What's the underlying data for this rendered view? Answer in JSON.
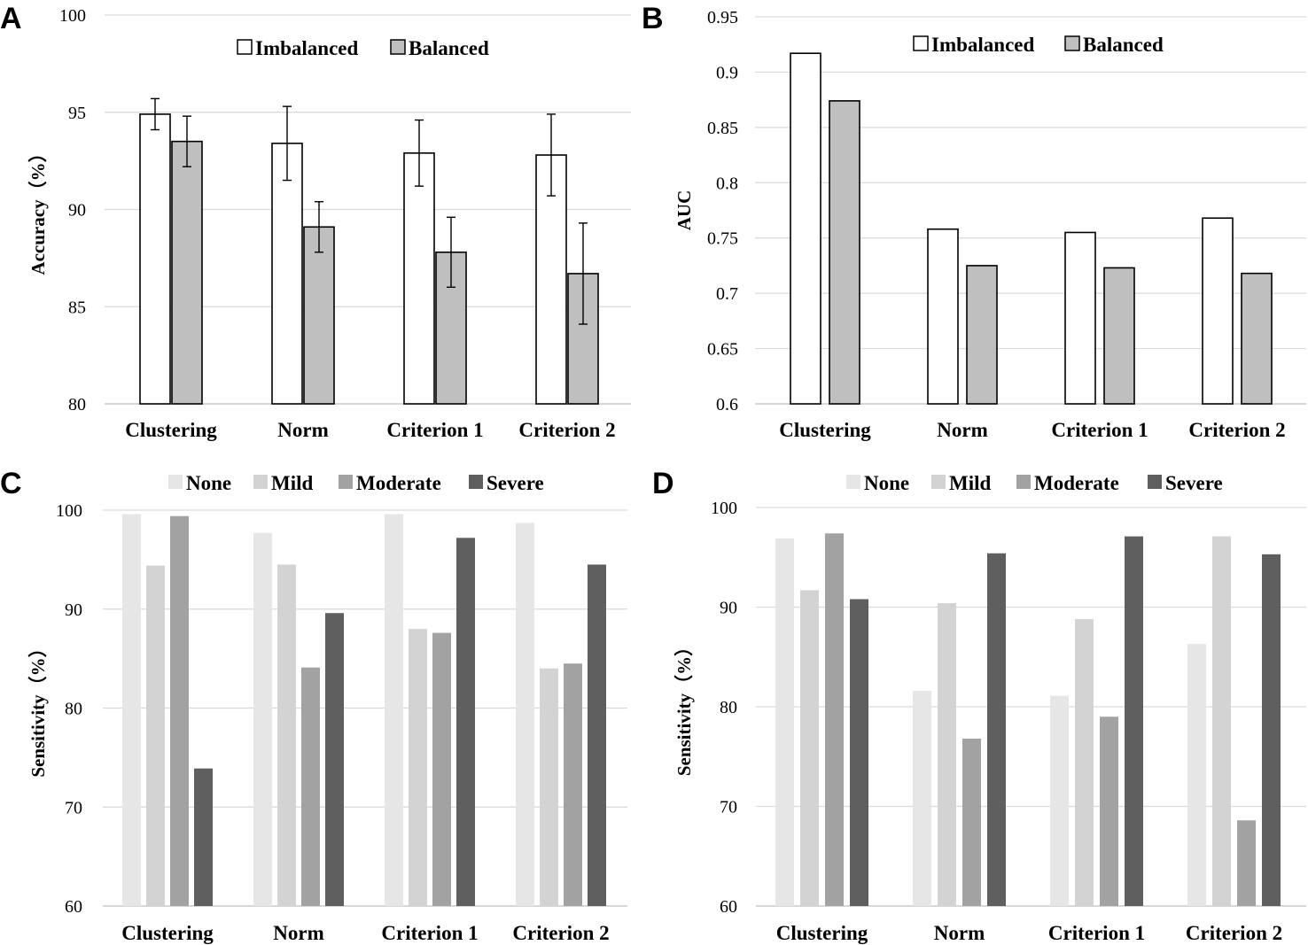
{
  "chart_data": [
    {
      "panel": "A",
      "type": "bar",
      "ylabel": "Accuracy（%）",
      "categories": [
        "Clustering",
        "Norm",
        "Criterion 1",
        "Criterion 2"
      ],
      "ylim": [
        80,
        100
      ],
      "yticks": [
        "80",
        "85",
        "90",
        "95",
        "100"
      ],
      "grid": true,
      "legend_position": "top-center",
      "series": [
        {
          "name": "Imbalanced",
          "color": "#ffffff",
          "values": [
            94.9,
            93.4,
            92.9,
            92.8
          ],
          "error": [
            0.8,
            1.9,
            1.7,
            2.1
          ]
        },
        {
          "name": "Balanced",
          "color": "#bfbfbf",
          "values": [
            93.5,
            89.1,
            87.8,
            86.7
          ],
          "error": [
            1.3,
            1.3,
            1.8,
            2.6
          ]
        }
      ]
    },
    {
      "panel": "B",
      "type": "bar",
      "ylabel": "AUC",
      "categories": [
        "Clustering",
        "Norm",
        "Criterion 1",
        "Criterion 2"
      ],
      "ylim": [
        0.6,
        0.95
      ],
      "yticks": [
        "0.6",
        "0.65",
        "0.7",
        "0.75",
        "0.8",
        "0.85",
        "0.9",
        "0.95"
      ],
      "grid": true,
      "legend_position": "top-center",
      "series": [
        {
          "name": "Imbalanced",
          "color": "#ffffff",
          "values": [
            0.917,
            0.758,
            0.755,
            0.768
          ]
        },
        {
          "name": "Balanced",
          "color": "#bfbfbf",
          "values": [
            0.874,
            0.725,
            0.723,
            0.718
          ]
        }
      ]
    },
    {
      "panel": "C",
      "type": "bar",
      "ylabel": "Sensitivity（%）",
      "categories": [
        "Clustering",
        "Norm",
        "Criterion 1",
        "Criterion 2"
      ],
      "ylim": [
        60,
        100
      ],
      "yticks": [
        "60",
        "70",
        "80",
        "90",
        "100"
      ],
      "grid": true,
      "legend_position": "top-center",
      "series": [
        {
          "name": "None",
          "color": "#e6e6e6",
          "values": [
            99.6,
            97.7,
            99.6,
            98.7
          ]
        },
        {
          "name": "Mild",
          "color": "#d3d3d3",
          "values": [
            94.4,
            94.5,
            88.0,
            84.0
          ]
        },
        {
          "name": "Moderate",
          "color": "#a2a2a2",
          "values": [
            99.4,
            84.1,
            87.6,
            84.5
          ]
        },
        {
          "name": "Severe",
          "color": "#5f5f5f",
          "values": [
            73.9,
            89.6,
            97.2,
            94.5
          ]
        }
      ]
    },
    {
      "panel": "D",
      "type": "bar",
      "ylabel": "Sensitivity（%）",
      "categories": [
        "Clustering",
        "Norm",
        "Criterion 1",
        "Criterion 2"
      ],
      "ylim": [
        60,
        100
      ],
      "yticks": [
        "60",
        "70",
        "80",
        "90",
        "100"
      ],
      "grid": true,
      "legend_position": "top-center",
      "series": [
        {
          "name": "None",
          "color": "#e6e6e6",
          "values": [
            96.9,
            81.6,
            81.1,
            86.3
          ]
        },
        {
          "name": "Mild",
          "color": "#d3d3d3",
          "values": [
            91.7,
            90.4,
            88.8,
            97.1
          ]
        },
        {
          "name": "Moderate",
          "color": "#a2a2a2",
          "values": [
            97.4,
            76.8,
            79.0,
            68.6
          ]
        },
        {
          "name": "Severe",
          "color": "#5f5f5f",
          "values": [
            90.8,
            95.4,
            97.1,
            95.3
          ]
        }
      ]
    }
  ]
}
